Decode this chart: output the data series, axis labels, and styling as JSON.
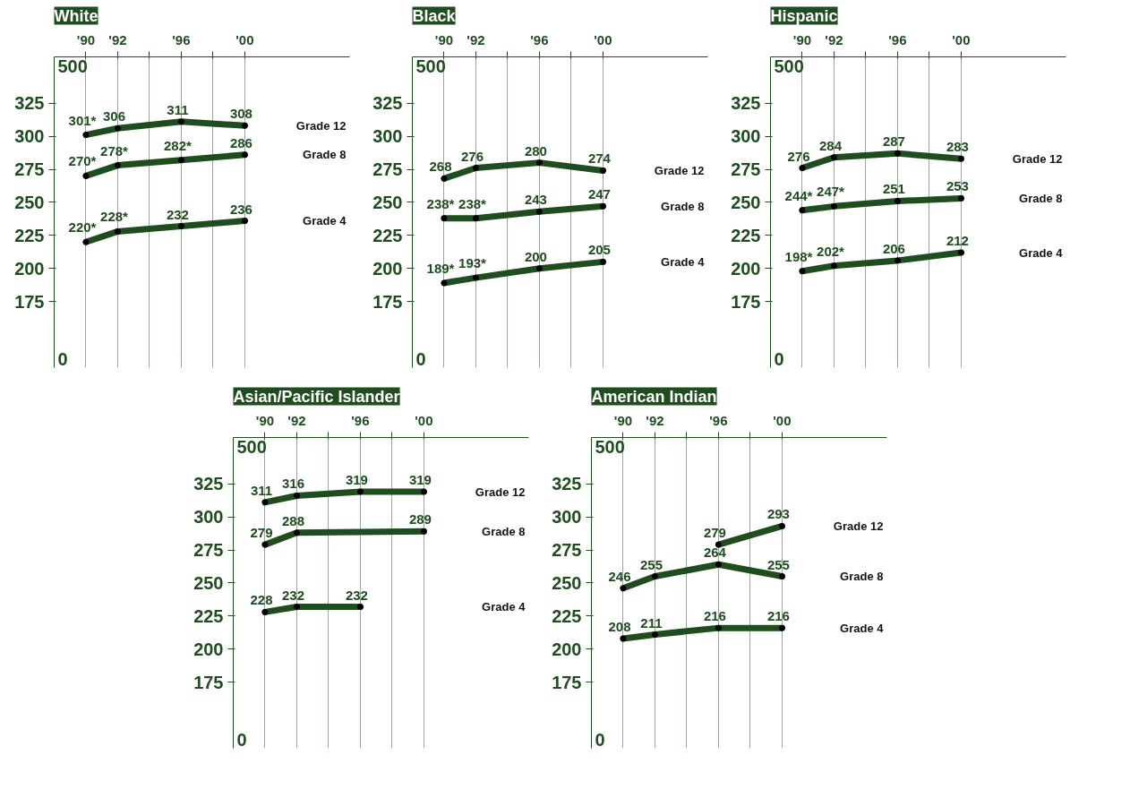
{
  "chart_data": [
    {
      "type": "line",
      "title": "White",
      "xlim": [
        1988,
        2006.6
      ],
      "ylim": [
        125,
        360
      ],
      "xticks": [
        {
          "value": 1990,
          "label": "'90"
        },
        {
          "value": 1992,
          "label": "'92"
        },
        {
          "value": 1994,
          "label": null
        },
        {
          "value": 1996,
          "label": "'96"
        },
        {
          "value": 1998,
          "label": null
        },
        {
          "value": 2000,
          "label": "'00"
        }
      ],
      "yticks": [
        175,
        200,
        225,
        250,
        275,
        300,
        325
      ],
      "grid": "x",
      "marker": "circle",
      "annotations": [
        "500",
        "0"
      ],
      "x": [
        1990,
        1992,
        1996,
        2000
      ],
      "series": [
        {
          "name": "Grade 12",
          "color": "#1f4d1f",
          "values": [
            301,
            306,
            311,
            308
          ],
          "value_labels": [
            "301*",
            "306",
            "311",
            "308"
          ]
        },
        {
          "name": "Grade 8",
          "color": "#1f4d1f",
          "values": [
            270,
            278,
            282,
            286
          ],
          "value_labels": [
            "270*",
            "278*",
            "282*",
            "286"
          ]
        },
        {
          "name": "Grade 4",
          "color": "#1f4d1f",
          "values": [
            220,
            228,
            232,
            236
          ],
          "value_labels": [
            "220*",
            "228*",
            "232",
            "236"
          ]
        }
      ]
    },
    {
      "type": "line",
      "title": "Black",
      "xlim": [
        1988,
        2006.6
      ],
      "ylim": [
        125,
        360
      ],
      "xticks": [
        {
          "value": 1990,
          "label": "'90"
        },
        {
          "value": 1992,
          "label": "'92"
        },
        {
          "value": 1994,
          "label": null
        },
        {
          "value": 1996,
          "label": "'96"
        },
        {
          "value": 1998,
          "label": null
        },
        {
          "value": 2000,
          "label": "'00"
        }
      ],
      "yticks": [
        175,
        200,
        225,
        250,
        275,
        300,
        325
      ],
      "grid": "x",
      "marker": "circle",
      "annotations": [
        "500",
        "0"
      ],
      "x": [
        1990,
        1992,
        1996,
        2000
      ],
      "series": [
        {
          "name": "Grade 12",
          "color": "#1f4d1f",
          "values": [
            268,
            276,
            280,
            274
          ],
          "value_labels": [
            "268",
            "276",
            "280",
            "274"
          ]
        },
        {
          "name": "Grade 8",
          "color": "#1f4d1f",
          "values": [
            238,
            238,
            243,
            247
          ],
          "value_labels": [
            "238*",
            "238*",
            "243",
            "247"
          ]
        },
        {
          "name": "Grade 4",
          "color": "#1f4d1f",
          "values": [
            189,
            193,
            200,
            205
          ],
          "value_labels": [
            "189*",
            "193*",
            "200",
            "205"
          ]
        }
      ]
    },
    {
      "type": "line",
      "title": "Hispanic",
      "xlim": [
        1988,
        2006.6
      ],
      "ylim": [
        125,
        360
      ],
      "xticks": [
        {
          "value": 1990,
          "label": "'90"
        },
        {
          "value": 1992,
          "label": "'92"
        },
        {
          "value": 1994,
          "label": null
        },
        {
          "value": 1996,
          "label": "'96"
        },
        {
          "value": 1998,
          "label": null
        },
        {
          "value": 2000,
          "label": "'00"
        }
      ],
      "yticks": [
        175,
        200,
        225,
        250,
        275,
        300,
        325
      ],
      "grid": "x",
      "marker": "circle",
      "annotations": [
        "500",
        "0"
      ],
      "x": [
        1990,
        1992,
        1996,
        2000
      ],
      "series": [
        {
          "name": "Grade 12",
          "color": "#1f4d1f",
          "values": [
            276,
            284,
            287,
            283
          ],
          "value_labels": [
            "276",
            "284",
            "287",
            "283"
          ]
        },
        {
          "name": "Grade 8",
          "color": "#1f4d1f",
          "values": [
            244,
            247,
            251,
            253
          ],
          "value_labels": [
            "244*",
            "247*",
            "251",
            "253"
          ]
        },
        {
          "name": "Grade 4",
          "color": "#1f4d1f",
          "values": [
            198,
            202,
            206,
            212
          ],
          "value_labels": [
            "198*",
            "202*",
            "206",
            "212"
          ]
        }
      ]
    },
    {
      "type": "line",
      "title": "Asian/Pacific Islander",
      "xlim": [
        1988,
        2006.6
      ],
      "ylim": [
        125,
        360
      ],
      "xticks": [
        {
          "value": 1990,
          "label": "'90"
        },
        {
          "value": 1992,
          "label": "'92"
        },
        {
          "value": 1994,
          "label": null
        },
        {
          "value": 1996,
          "label": "'96"
        },
        {
          "value": 1998,
          "label": null
        },
        {
          "value": 2000,
          "label": "'00"
        }
      ],
      "yticks": [
        175,
        200,
        225,
        250,
        275,
        300,
        325
      ],
      "grid": "x",
      "marker": "circle",
      "annotations": [
        "500",
        "0"
      ],
      "series": [
        {
          "name": "Grade 12",
          "color": "#1f4d1f",
          "x": [
            1990,
            1992,
            1996,
            2000
          ],
          "values": [
            311,
            316,
            319,
            319
          ],
          "value_labels": [
            "311",
            "316",
            "319",
            "319"
          ]
        },
        {
          "name": "Grade 8",
          "color": "#1f4d1f",
          "x": [
            1990,
            1992,
            2000
          ],
          "values": [
            279,
            288,
            289
          ],
          "value_labels": [
            "279",
            "288",
            "289"
          ]
        },
        {
          "name": "Grade 4",
          "color": "#1f4d1f",
          "x": [
            1990,
            1992,
            1996
          ],
          "values": [
            228,
            232,
            232
          ],
          "value_labels": [
            "228",
            "232",
            "232"
          ]
        }
      ]
    },
    {
      "type": "line",
      "title": "American Indian",
      "xlim": [
        1988,
        2006.6
      ],
      "ylim": [
        125,
        360
      ],
      "xticks": [
        {
          "value": 1990,
          "label": "'90"
        },
        {
          "value": 1992,
          "label": "'92"
        },
        {
          "value": 1994,
          "label": null
        },
        {
          "value": 1996,
          "label": "'96"
        },
        {
          "value": 1998,
          "label": null
        },
        {
          "value": 2000,
          "label": "'00"
        }
      ],
      "yticks": [
        175,
        200,
        225,
        250,
        275,
        300,
        325
      ],
      "grid": "x",
      "marker": "circle",
      "annotations": [
        "500",
        "0"
      ],
      "series": [
        {
          "name": "Grade 12",
          "color": "#1f4d1f",
          "x": [
            1996,
            2000
          ],
          "values": [
            279,
            293
          ],
          "value_labels": [
            "279",
            "293"
          ]
        },
        {
          "name": "Grade 8",
          "color": "#1f4d1f",
          "x": [
            1990,
            1992,
            1996,
            2000
          ],
          "values": [
            246,
            255,
            264,
            255
          ],
          "value_labels": [
            "246",
            "255",
            "264",
            "255"
          ]
        },
        {
          "name": "Grade 4",
          "color": "#1f4d1f",
          "x": [
            1990,
            1992,
            1996,
            2000
          ],
          "values": [
            208,
            211,
            216,
            216
          ],
          "value_labels": [
            "208",
            "211",
            "216",
            "216"
          ]
        }
      ]
    }
  ]
}
